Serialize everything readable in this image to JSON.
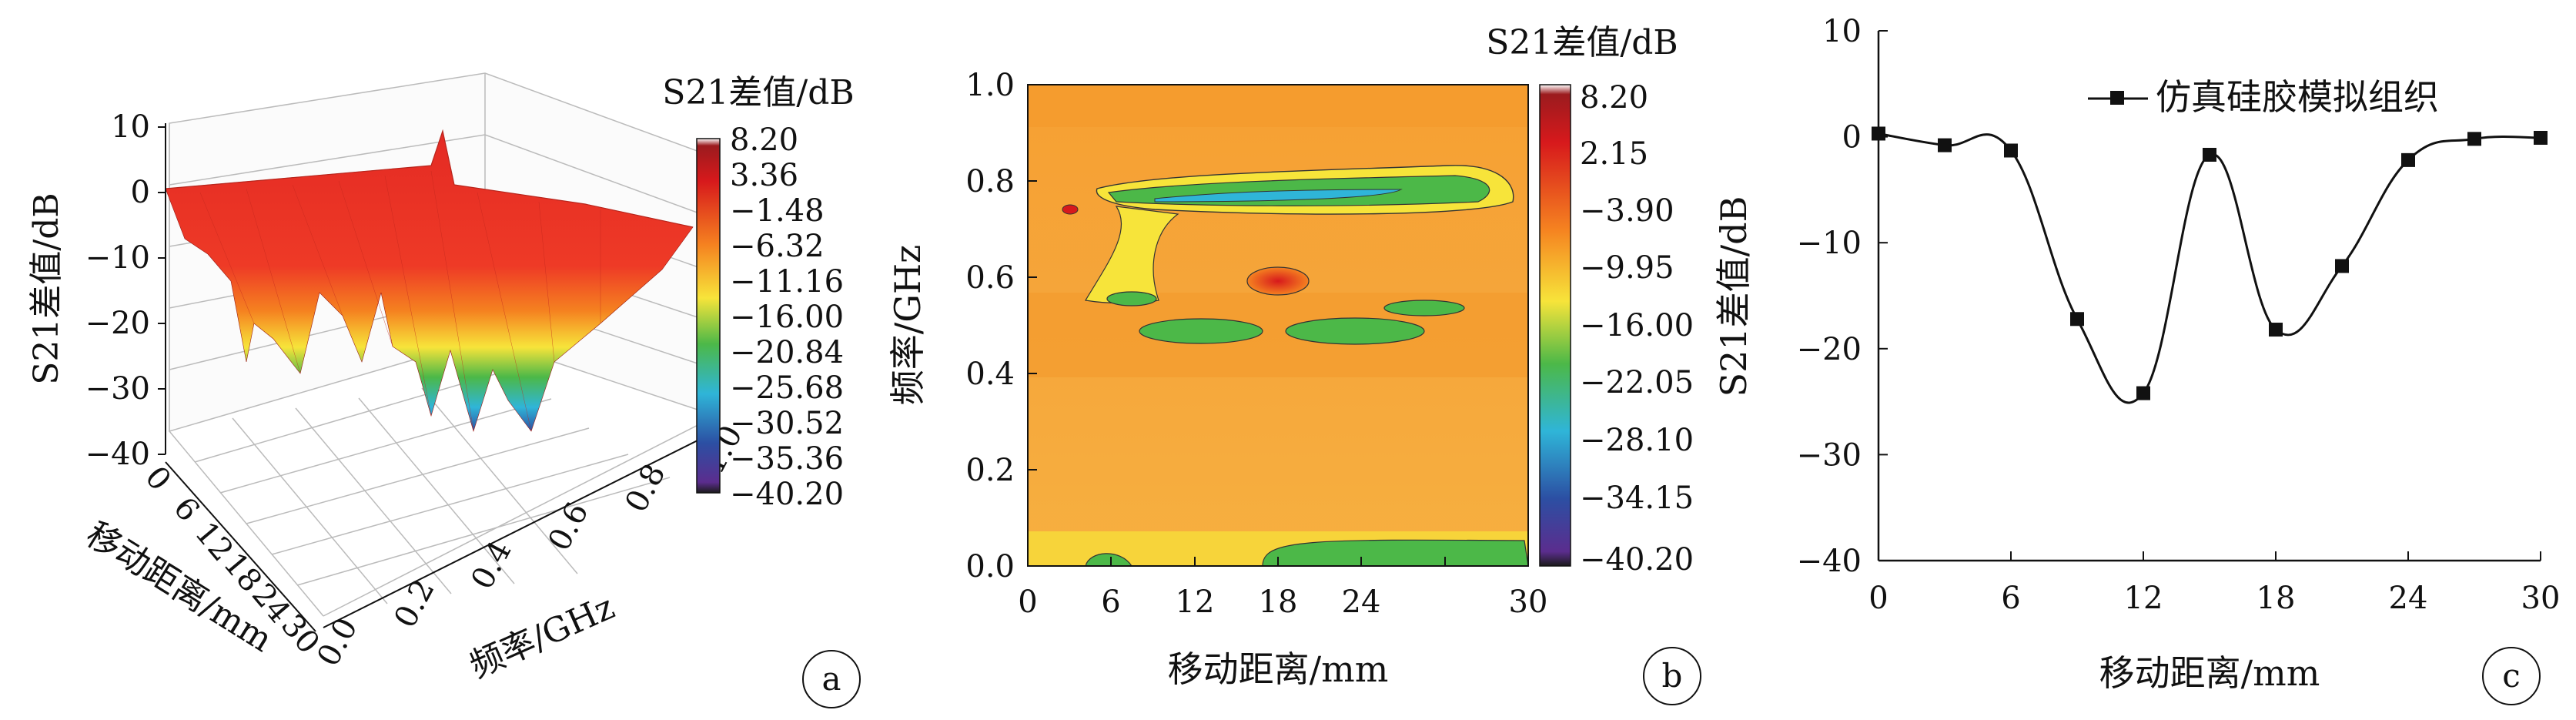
{
  "panels": {
    "a": {
      "label": "a"
    },
    "b": {
      "label": "b"
    },
    "c": {
      "label": "c"
    }
  },
  "colorbar_a": {
    "title": "S21差值/dB",
    "ticks": [
      "8.20",
      "3.36",
      "−1.48",
      "−6.32",
      "−11.16",
      "−16.00",
      "−20.84",
      "−25.68",
      "−30.52",
      "−35.36",
      "−40.20"
    ]
  },
  "colorbar_b": {
    "title": "S21差值/dB",
    "ticks": [
      "8.20",
      "2.15",
      "−3.90",
      "−9.95",
      "−16.00",
      "−22.05",
      "−28.10",
      "−34.15",
      "−40.20"
    ]
  },
  "colors": {
    "high": "#d7191c",
    "orange": "#f58220",
    "yellow": "#f7e43a",
    "green": "#4cb848",
    "cyan": "#2fb5d8",
    "blue": "#2c4fa3",
    "purple": "#5b2d8e",
    "axis": "#111111"
  },
  "chart_data": [
    {
      "panel": "a",
      "type": "surface3d",
      "zlabel": "S21差值/dB",
      "xlabel": "移动距离/mm",
      "ylabel": "频率/GHz",
      "z_ticks": [
        "10",
        "0",
        "−10",
        "−20",
        "−30",
        "−40"
      ],
      "x_ticks": [
        "0",
        "6",
        "12",
        "18",
        "24",
        "30"
      ],
      "y_ticks": [
        "0.0",
        "0.2",
        "0.4",
        "0.6",
        "0.8",
        "1.0"
      ],
      "zlim": [
        -40,
        10
      ],
      "xlim": [
        0,
        30
      ],
      "ylim": [
        0,
        1.0
      ]
    },
    {
      "panel": "b",
      "type": "heatmap",
      "xlabel": "移动距离/mm",
      "ylabel": "频率/GHz",
      "x_ticks": [
        "0",
        "6",
        "12",
        "18",
        "24",
        "30"
      ],
      "y_ticks": [
        "0.0",
        "0.2",
        "0.4",
        "0.6",
        "0.8",
        "1.0"
      ],
      "xlim": [
        0,
        30
      ],
      "ylim": [
        0,
        1.0
      ],
      "clim": [
        -40.2,
        8.2
      ]
    },
    {
      "panel": "c",
      "type": "line",
      "xlabel": "移动距离/mm",
      "ylabel": "S21差值/dB",
      "legend": "仿真硅胶模拟组织",
      "x_ticks": [
        "0",
        "6",
        "12",
        "18",
        "24",
        "30"
      ],
      "y_ticks": [
        "10",
        "0",
        "−10",
        "−20",
        "−30",
        "−40"
      ],
      "xlim": [
        0,
        30
      ],
      "ylim": [
        -40,
        10
      ],
      "x": [
        0,
        3,
        6,
        9,
        12,
        15,
        18,
        21,
        24,
        27,
        30
      ],
      "values": [
        0.3,
        -0.8,
        -1.3,
        -17.2,
        -24.2,
        -1.7,
        -18.2,
        -12.2,
        -2.2,
        -0.2,
        -0.1
      ]
    }
  ]
}
